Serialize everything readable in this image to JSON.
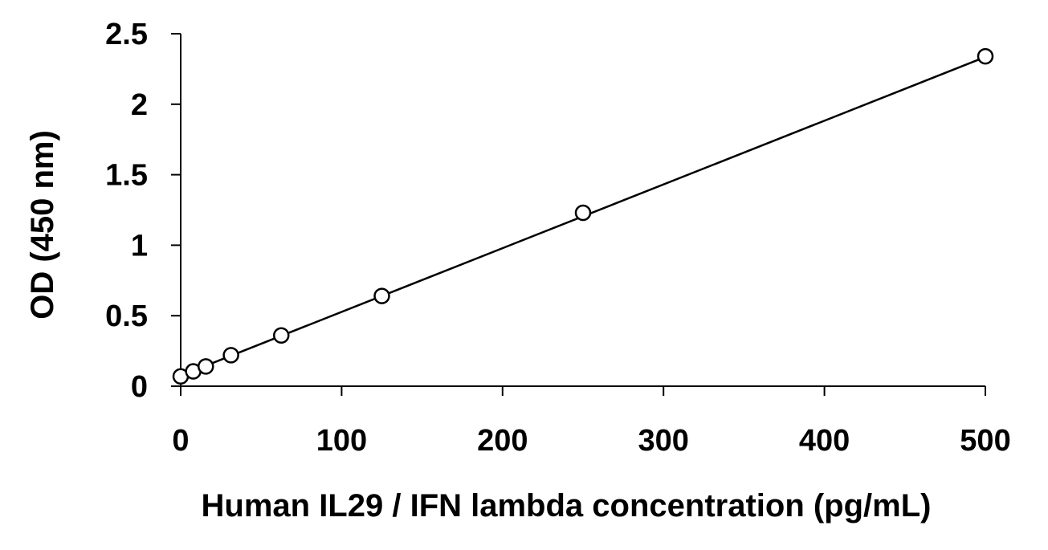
{
  "chart_data": {
    "type": "scatter",
    "title": "",
    "xlabel": "Human IL29 / IFN lambda concentration (pg/mL)",
    "ylabel": "OD (450 nm)",
    "xlim": [
      0,
      500
    ],
    "ylim": [
      0,
      2.5
    ],
    "x_ticks": [
      0,
      100,
      200,
      300,
      400,
      500
    ],
    "y_ticks": [
      0,
      0.5,
      1,
      1.5,
      2,
      2.5
    ],
    "x_tick_labels": [
      "0",
      "100",
      "200",
      "300",
      "400",
      "500"
    ],
    "y_tick_labels": [
      "0",
      "0.5",
      "1",
      "1.5",
      "2",
      "2.5"
    ],
    "grid": false,
    "legend": "none",
    "series": [
      {
        "marker": "open-circle",
        "color": "#000000",
        "x": [
          0,
          7.8,
          15.6,
          31.25,
          62.5,
          125,
          250,
          500
        ],
        "y": [
          0.07,
          0.105,
          0.14,
          0.22,
          0.36,
          0.64,
          1.23,
          2.34
        ]
      }
    ],
    "fit_line": {
      "type": "linear",
      "color": "#000000",
      "x": [
        0,
        500
      ],
      "y": [
        0.075,
        2.335
      ]
    }
  }
}
